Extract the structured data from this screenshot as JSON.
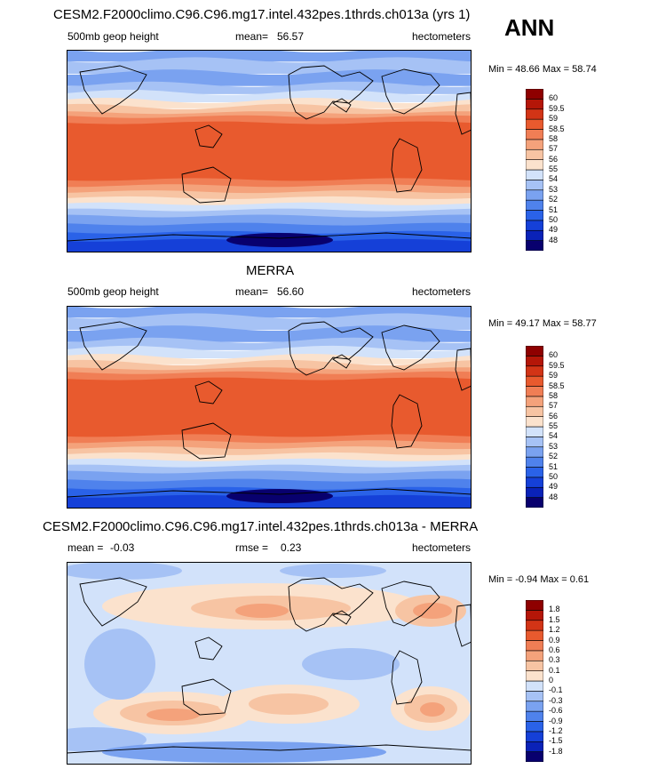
{
  "season": "ANN",
  "chart_data": [
    {
      "type": "heatmap",
      "title": "CESM2.F2000climo.C96.C96.mg17.intel.432pes.1thrds.ch013a (yrs 1)",
      "variable": "500mb geop height",
      "mean_label": "mean=",
      "mean": "56.57",
      "units": "hectometers",
      "stats": "Min = 48.66 Max = 58.74",
      "levels": [
        "48",
        "49",
        "50",
        "51",
        "52",
        "53",
        "54",
        "55",
        "56",
        "57",
        "58",
        "58.5",
        "59",
        "59.5",
        "60"
      ],
      "colors": [
        "#08006e",
        "#0a22b8",
        "#1540d8",
        "#2a62e8",
        "#4f82ec",
        "#7aa2f0",
        "#a6c2f5",
        "#d2e2fa",
        "#fbe2cd",
        "#f7c4a3",
        "#f4a27b",
        "#f07e55",
        "#e85a2e",
        "#d23416",
        "#b41608",
        "#8e0000"
      ]
    },
    {
      "type": "heatmap",
      "title": "MERRA",
      "variable": "500mb geop height",
      "mean_label": "mean=",
      "mean": "56.60",
      "units": "hectometers",
      "stats": "Min = 49.17 Max = 58.77",
      "levels": [
        "48",
        "49",
        "50",
        "51",
        "52",
        "53",
        "54",
        "55",
        "56",
        "57",
        "58",
        "58.5",
        "59",
        "59.5",
        "60"
      ],
      "colors": [
        "#08006e",
        "#0a22b8",
        "#1540d8",
        "#2a62e8",
        "#4f82ec",
        "#7aa2f0",
        "#a6c2f5",
        "#d2e2fa",
        "#fbe2cd",
        "#f7c4a3",
        "#f4a27b",
        "#f07e55",
        "#e85a2e",
        "#d23416",
        "#b41608",
        "#8e0000"
      ]
    },
    {
      "type": "heatmap",
      "title": "CESM2.F2000climo.C96.C96.mg17.intel.432pes.1thrds.ch013a - MERRA",
      "mean_label": "mean =",
      "mean": "-0.03",
      "rmse_label": "rmse =",
      "rmse": "0.23",
      "units": "hectometers",
      "stats": "Min = -0.94 Max =   0.61",
      "levels": [
        "-1.8",
        "-1.5",
        "-1.2",
        "-0.9",
        "-0.6",
        "-0.3",
        "-0.1",
        "0",
        "0.1",
        "0.3",
        "0.6",
        "0.9",
        "1.2",
        "1.5",
        "1.8"
      ],
      "colors": [
        "#08006e",
        "#0a22b8",
        "#1540d8",
        "#2a62e8",
        "#4f82ec",
        "#7aa2f0",
        "#a6c2f5",
        "#d2e2fa",
        "#fbe2cd",
        "#f7c4a3",
        "#f4a27b",
        "#f07e55",
        "#e85a2e",
        "#d23416",
        "#b41608",
        "#8e0000"
      ]
    }
  ]
}
